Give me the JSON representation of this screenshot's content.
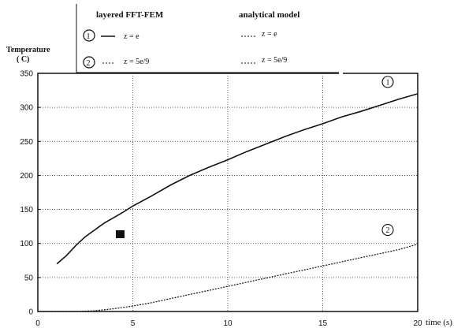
{
  "legend": {
    "header_fem": "layered FFT-FEM",
    "header_analytical": "analytical model",
    "row1_marker": "1",
    "row1_fem_label": "z = e",
    "row1_analytical_label": "z = e",
    "row2_marker": "2",
    "row2_fem_label": "z = 5e/9",
    "row2_analytical_label": "z = 5e/9"
  },
  "chart_data": {
    "type": "line",
    "ylabel": "Temperature",
    "ylabel_unit": "( C)",
    "xlabel": "time (s)",
    "xlim": [
      0,
      20
    ],
    "ylim": [
      0,
      350
    ],
    "xticks": [
      0,
      5,
      10,
      15,
      20
    ],
    "yticks": [
      0,
      50,
      100,
      150,
      200,
      250,
      300,
      350
    ],
    "grid": true,
    "series": [
      {
        "name": "z = e",
        "marker_label": "1",
        "style": "solid",
        "x": [
          1,
          1.5,
          2,
          2.5,
          3,
          3.5,
          4,
          4.5,
          5,
          6,
          7,
          8,
          9,
          10,
          11,
          12,
          13,
          14,
          15,
          16,
          17,
          18,
          19,
          20
        ],
        "y": [
          70,
          82,
          97,
          110,
          120,
          130,
          138,
          146,
          155,
          170,
          186,
          200,
          212,
          223,
          235,
          246,
          257,
          267,
          276,
          286,
          294,
          303,
          312,
          320
        ]
      },
      {
        "name": "z = 5e/9",
        "marker_label": "2",
        "style": "dotted",
        "x": [
          0,
          1,
          2,
          3,
          4,
          5,
          6,
          7,
          8,
          9,
          10,
          11,
          12,
          13,
          14,
          15,
          16,
          17,
          18,
          19,
          20
        ],
        "y": [
          0,
          0,
          0,
          1,
          4,
          8,
          13,
          19,
          25,
          31,
          37,
          43,
          49,
          55,
          61,
          67,
          73,
          79,
          85,
          91,
          99
        ]
      }
    ]
  }
}
